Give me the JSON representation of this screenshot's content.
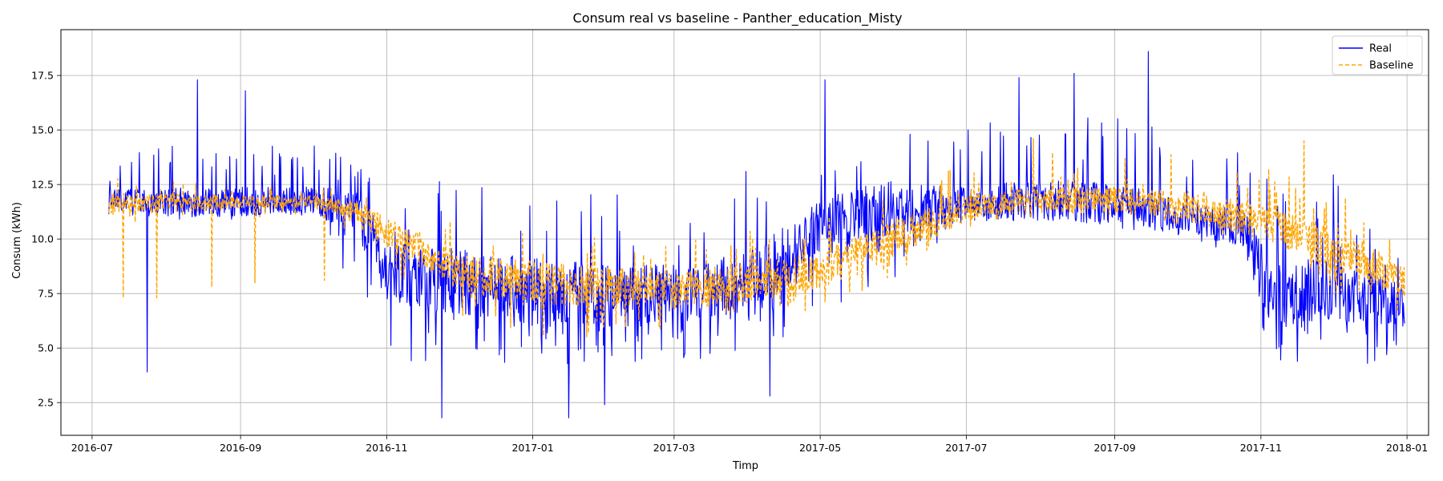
{
  "chart_data": {
    "type": "line",
    "title": "Consum real vs baseline - Panther_education_Misty",
    "xlabel": "Timp",
    "ylabel": "Consum (kWh)",
    "x_range": [
      "2016-06-18",
      "2018-01-10"
    ],
    "ylim": [
      1.0,
      19.6
    ],
    "x_ticks": [
      "2016-07",
      "2016-09",
      "2016-11",
      "2017-01",
      "2017-03",
      "2017-05",
      "2017-07",
      "2017-09",
      "2017-11",
      "2018-01"
    ],
    "y_ticks": [
      2.5,
      5.0,
      7.5,
      10.0,
      12.5,
      15.0,
      17.5
    ],
    "grid": true,
    "legend_position": "top-right",
    "data_start": "2016-07-08",
    "data_end": "2017-12-31",
    "series": [
      {
        "name": "Real",
        "color": "#0000ff",
        "style": "solid",
        "profile": [
          {
            "date": "2016-07-08",
            "level": 11.8,
            "low": 11.0,
            "high": 13.6
          },
          {
            "date": "2016-08-01",
            "level": 11.7,
            "low": 10.9,
            "high": 14.5
          },
          {
            "date": "2016-09-01",
            "level": 11.7,
            "low": 10.9,
            "high": 14.8
          },
          {
            "date": "2016-10-01",
            "level": 11.8,
            "low": 11.0,
            "high": 14.5
          },
          {
            "date": "2016-10-20",
            "level": 11.2,
            "low": 7.5,
            "high": 13.5
          },
          {
            "date": "2016-11-01",
            "level": 8.5,
            "low": 4.5,
            "high": 12.0
          },
          {
            "date": "2016-12-01",
            "level": 8.0,
            "low": 4.2,
            "high": 13.5
          },
          {
            "date": "2017-01-01",
            "level": 7.5,
            "low": 4.2,
            "high": 13.5
          },
          {
            "date": "2017-02-01",
            "level": 7.3,
            "low": 4.2,
            "high": 13.0
          },
          {
            "date": "2017-03-01",
            "level": 7.5,
            "low": 4.5,
            "high": 12.0
          },
          {
            "date": "2017-04-01",
            "level": 7.8,
            "low": 4.5,
            "high": 13.5
          },
          {
            "date": "2017-05-01",
            "level": 10.5,
            "low": 6.5,
            "high": 14.0
          },
          {
            "date": "2017-06-01",
            "level": 11.5,
            "low": 8.0,
            "high": 15.5
          },
          {
            "date": "2017-07-01",
            "level": 11.6,
            "low": 10.8,
            "high": 15.5
          },
          {
            "date": "2017-08-01",
            "level": 11.8,
            "low": 10.8,
            "high": 16.0
          },
          {
            "date": "2017-09-01",
            "level": 11.6,
            "low": 10.5,
            "high": 16.0
          },
          {
            "date": "2017-10-01",
            "level": 11.0,
            "low": 10.0,
            "high": 14.5
          },
          {
            "date": "2017-10-25",
            "level": 10.5,
            "low": 9.0,
            "high": 14.0
          },
          {
            "date": "2017-11-05",
            "level": 7.5,
            "low": 4.5,
            "high": 13.5
          },
          {
            "date": "2017-12-01",
            "level": 7.5,
            "low": 4.2,
            "high": 13.0
          },
          {
            "date": "2017-12-31",
            "level": 7.0,
            "low": 4.3,
            "high": 10.0
          }
        ],
        "notable_peaks": [
          {
            "date": "2016-08-14",
            "value": 17.3
          },
          {
            "date": "2016-09-03",
            "value": 16.8
          },
          {
            "date": "2017-05-03",
            "value": 17.3
          },
          {
            "date": "2017-07-23",
            "value": 17.4
          },
          {
            "date": "2017-08-15",
            "value": 17.6
          },
          {
            "date": "2017-09-15",
            "value": 18.6
          }
        ],
        "notable_dips": [
          {
            "date": "2016-07-24",
            "value": 3.9
          },
          {
            "date": "2016-11-24",
            "value": 1.8
          },
          {
            "date": "2017-01-16",
            "value": 1.8
          },
          {
            "date": "2017-01-31",
            "value": 2.4
          },
          {
            "date": "2017-04-10",
            "value": 2.8
          }
        ]
      },
      {
        "name": "Baseline",
        "color": "#ffa500",
        "style": "dashed",
        "profile": [
          {
            "date": "2016-07-08",
            "level": 11.6,
            "low": 10.5,
            "high": 13.0
          },
          {
            "date": "2016-08-01",
            "level": 11.7,
            "low": 10.8,
            "high": 12.7
          },
          {
            "date": "2016-09-01",
            "level": 11.7,
            "low": 10.9,
            "high": 12.5
          },
          {
            "date": "2016-10-01",
            "level": 11.7,
            "low": 11.0,
            "high": 12.5
          },
          {
            "date": "2016-10-20",
            "level": 11.3,
            "low": 10.0,
            "high": 12.3
          },
          {
            "date": "2016-11-01",
            "level": 10.3,
            "low": 8.5,
            "high": 12.0
          },
          {
            "date": "2016-12-01",
            "level": 8.5,
            "low": 6.5,
            "high": 11.0
          },
          {
            "date": "2017-01-01",
            "level": 8.0,
            "low": 5.5,
            "high": 10.5
          },
          {
            "date": "2017-02-01",
            "level": 7.8,
            "low": 5.5,
            "high": 10.0
          },
          {
            "date": "2017-03-01",
            "level": 7.6,
            "low": 5.8,
            "high": 10.0
          },
          {
            "date": "2017-04-01",
            "level": 8.0,
            "low": 6.0,
            "high": 10.5
          },
          {
            "date": "2017-05-01",
            "level": 8.5,
            "low": 6.5,
            "high": 11.0
          },
          {
            "date": "2017-06-01",
            "level": 10.0,
            "low": 8.0,
            "high": 12.5
          },
          {
            "date": "2017-07-01",
            "level": 11.4,
            "low": 10.5,
            "high": 13.5
          },
          {
            "date": "2017-08-01",
            "level": 11.8,
            "low": 11.0,
            "high": 14.0
          },
          {
            "date": "2017-09-01",
            "level": 11.8,
            "low": 11.0,
            "high": 14.0
          },
          {
            "date": "2017-10-01",
            "level": 11.5,
            "low": 10.5,
            "high": 14.0
          },
          {
            "date": "2017-11-01",
            "level": 10.8,
            "low": 9.5,
            "high": 13.5
          },
          {
            "date": "2017-12-01",
            "level": 9.5,
            "low": 7.5,
            "high": 12.5
          },
          {
            "date": "2017-12-31",
            "level": 8.0,
            "low": 6.5,
            "high": 10.0
          }
        ],
        "notable_peaks": [
          {
            "date": "2017-07-29",
            "value": 14.6
          },
          {
            "date": "2017-11-19",
            "value": 14.5
          }
        ],
        "notable_dips": [
          {
            "date": "2016-07-14",
            "value": 7.3
          },
          {
            "date": "2016-07-28",
            "value": 7.3
          },
          {
            "date": "2016-08-20",
            "value": 7.8
          },
          {
            "date": "2016-09-07",
            "value": 8.0
          },
          {
            "date": "2016-10-06",
            "value": 8.1
          }
        ]
      }
    ]
  }
}
